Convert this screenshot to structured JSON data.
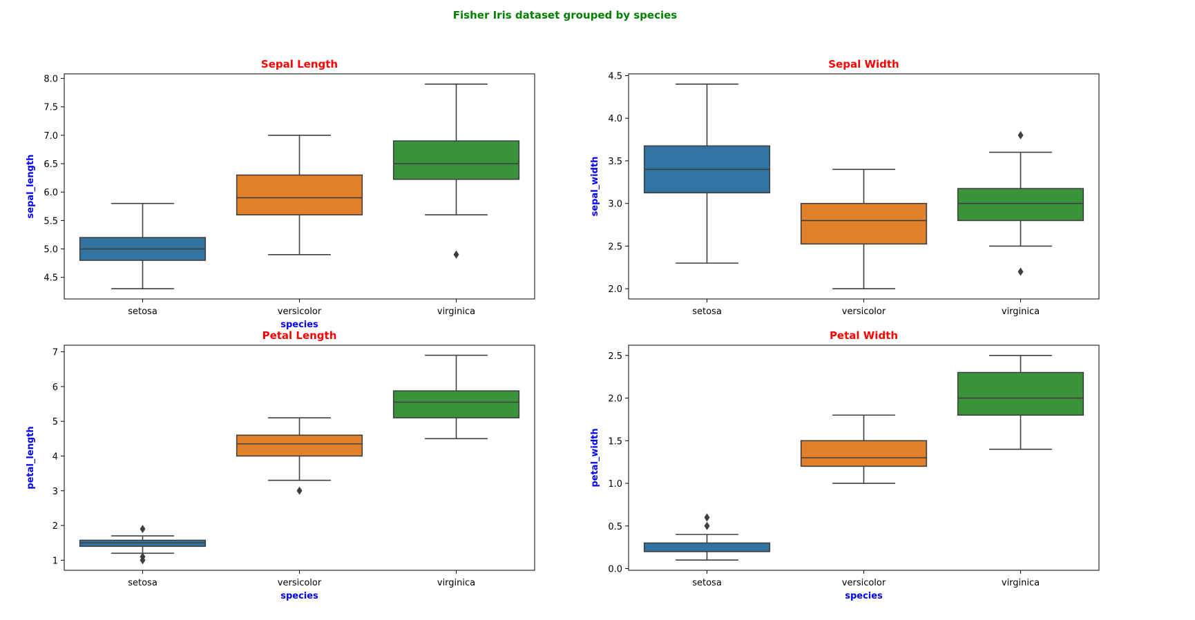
{
  "figure": {
    "suptitle": "Fisher Iris dataset grouped by species",
    "suptitle_color": "#008000",
    "title_color": "#ff0000",
    "label_color": "#0000ff"
  },
  "chart_data": [
    {
      "type": "box",
      "title": "Sepal Length",
      "xlabel": "species",
      "ylabel": "sepal_length",
      "ylim": [
        4.12,
        8.08
      ],
      "yticks": [
        4.5,
        5.0,
        5.5,
        6.0,
        6.5,
        7.0,
        7.5,
        8.0
      ],
      "ytick_labels": [
        "4.5",
        "5.0",
        "5.5",
        "6.0",
        "6.5",
        "7.0",
        "7.5",
        "8.0"
      ],
      "categories": [
        "setosa",
        "versicolor",
        "virginica"
      ],
      "colors": [
        "#3274a1",
        "#e1812c",
        "#3a923a"
      ],
      "boxes": [
        {
          "min": 4.3,
          "q1": 4.8,
          "median": 5.0,
          "q3": 5.2,
          "max": 5.8,
          "outliers": []
        },
        {
          "min": 4.9,
          "q1": 5.6,
          "median": 5.9,
          "q3": 6.3,
          "max": 7.0,
          "outliers": []
        },
        {
          "min": 5.6,
          "q1": 6.225,
          "median": 6.5,
          "q3": 6.9,
          "max": 7.9,
          "outliers": [
            4.9
          ]
        }
      ]
    },
    {
      "type": "box",
      "title": "Sepal Width",
      "xlabel": "",
      "ylabel": "sepal_width",
      "ylim": [
        1.88,
        4.52
      ],
      "yticks": [
        2.0,
        2.5,
        3.0,
        3.5,
        4.0,
        4.5
      ],
      "ytick_labels": [
        "2.0",
        "2.5",
        "3.0",
        "3.5",
        "4.0",
        "4.5"
      ],
      "categories": [
        "setosa",
        "versicolor",
        "virginica"
      ],
      "colors": [
        "#3274a1",
        "#e1812c",
        "#3a923a"
      ],
      "boxes": [
        {
          "min": 2.3,
          "q1": 3.125,
          "median": 3.4,
          "q3": 3.675,
          "max": 4.4,
          "outliers": []
        },
        {
          "min": 2.0,
          "q1": 2.525,
          "median": 2.8,
          "q3": 3.0,
          "max": 3.4,
          "outliers": []
        },
        {
          "min": 2.5,
          "q1": 2.8,
          "median": 3.0,
          "q3": 3.175,
          "max": 3.6,
          "outliers": [
            3.8,
            2.2
          ]
        }
      ]
    },
    {
      "type": "box",
      "title": "Petal Length",
      "xlabel": "species",
      "ylabel": "petal_length",
      "ylim": [
        0.71,
        7.19
      ],
      "yticks": [
        1,
        2,
        3,
        4,
        5,
        6,
        7
      ],
      "ytick_labels": [
        "1",
        "2",
        "3",
        "4",
        "5",
        "6",
        "7"
      ],
      "categories": [
        "setosa",
        "versicolor",
        "virginica"
      ],
      "colors": [
        "#3274a1",
        "#e1812c",
        "#3a923a"
      ],
      "boxes": [
        {
          "min": 1.2,
          "q1": 1.4,
          "median": 1.5,
          "q3": 1.575,
          "max": 1.7,
          "outliers": [
            1.9,
            1.1,
            1.0
          ]
        },
        {
          "min": 3.3,
          "q1": 4.0,
          "median": 4.35,
          "q3": 4.6,
          "max": 5.1,
          "outliers": [
            3.0
          ]
        },
        {
          "min": 4.5,
          "q1": 5.1,
          "median": 5.55,
          "q3": 5.875,
          "max": 6.9,
          "outliers": []
        }
      ]
    },
    {
      "type": "box",
      "title": "Petal Width",
      "xlabel": "species",
      "ylabel": "petal_width",
      "ylim": [
        -0.02,
        2.62
      ],
      "yticks": [
        0.0,
        0.5,
        1.0,
        1.5,
        2.0,
        2.5
      ],
      "ytick_labels": [
        "0.0",
        "0.5",
        "1.0",
        "1.5",
        "2.0",
        "2.5"
      ],
      "categories": [
        "setosa",
        "versicolor",
        "virginica"
      ],
      "colors": [
        "#3274a1",
        "#e1812c",
        "#3a923a"
      ],
      "boxes": [
        {
          "min": 0.1,
          "q1": 0.2,
          "median": 0.2,
          "q3": 0.3,
          "max": 0.4,
          "outliers": [
            0.6,
            0.5
          ]
        },
        {
          "min": 1.0,
          "q1": 1.2,
          "median": 1.3,
          "q3": 1.5,
          "max": 1.8,
          "outliers": []
        },
        {
          "min": 1.4,
          "q1": 1.8,
          "median": 2.0,
          "q3": 2.3,
          "max": 2.5,
          "outliers": []
        }
      ]
    }
  ]
}
